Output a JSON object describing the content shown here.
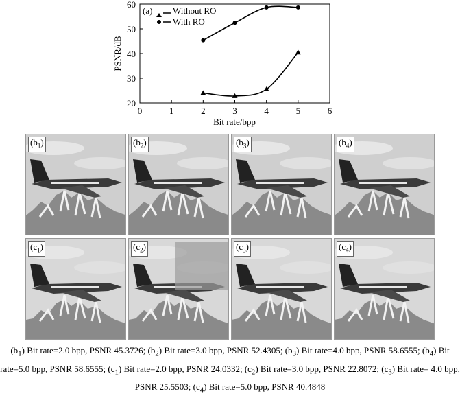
{
  "chart_data": {
    "type": "line",
    "panel_label": "(a)",
    "xlabel": "Bit rate/bpp",
    "ylabel": "PSNR/dB",
    "xlim": [
      0,
      6
    ],
    "ylim": [
      20,
      60
    ],
    "xticks": [
      0,
      1,
      2,
      3,
      4,
      5,
      6
    ],
    "yticks": [
      20,
      30,
      40,
      50,
      60
    ],
    "legend_position": "top-left",
    "series": [
      {
        "name": "Without RO",
        "marker": "triangle",
        "x": [
          2,
          3,
          4,
          5
        ],
        "y": [
          24.0332,
          22.8072,
          25.5503,
          40.4848
        ]
      },
      {
        "name": "With RO",
        "marker": "circle",
        "x": [
          2,
          3,
          4,
          5
        ],
        "y": [
          45.3726,
          52.4305,
          58.6555,
          58.6555
        ]
      }
    ]
  },
  "panels_b": [
    {
      "letter": "b",
      "index": "1"
    },
    {
      "letter": "b",
      "index": "2"
    },
    {
      "letter": "b",
      "index": "3"
    },
    {
      "letter": "b",
      "index": "4"
    }
  ],
  "panels_c": [
    {
      "letter": "c",
      "index": "1"
    },
    {
      "letter": "c",
      "index": "2"
    },
    {
      "letter": "c",
      "index": "3"
    },
    {
      "letter": "c",
      "index": "4"
    }
  ],
  "caption": [
    {
      "pre": "(b",
      "sub": "1",
      "post": ") Bit rate=2.0 bpp, PSNR 45.3726; "
    },
    {
      "pre": "(b",
      "sub": "2",
      "post": ") Bit rate=3.0 bpp, PSNR 52.4305; "
    },
    {
      "pre": "(b",
      "sub": "3",
      "post": ") Bit rate=4.0 bpp, PSNR 58.6555; "
    },
    {
      "pre": "(b",
      "sub": "4",
      "post": ") Bit rate=5.0 bpp, PSNR 58.6555; "
    },
    {
      "pre": "(c",
      "sub": "1",
      "post": ") Bit rate=2.0 bpp, PSNR 24.0332; "
    },
    {
      "pre": "(c",
      "sub": "2",
      "post": ") Bit rate=3.0 bpp, PSNR 22.8072; "
    },
    {
      "pre": "(c",
      "sub": "3",
      "post": ") Bit rate= 4.0 bpp, PSNR 25.5503; "
    },
    {
      "pre": "(c",
      "sub": "4",
      "post": ") Bit rate=5.0 bpp, PSNR 40.4848"
    }
  ]
}
